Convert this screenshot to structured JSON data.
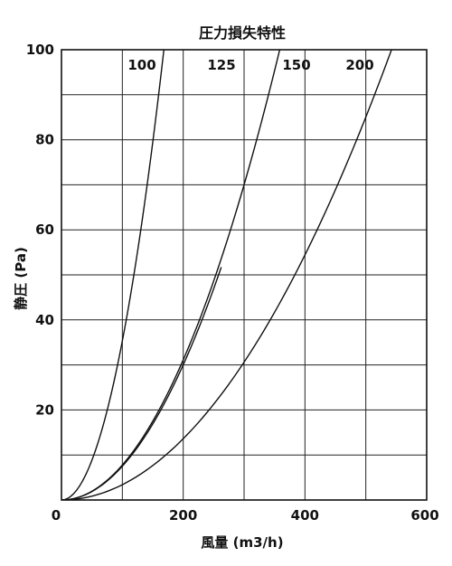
{
  "chart_data": {
    "type": "line",
    "title": "圧力損失特性",
    "xlabel": "風量 (m3/h)",
    "ylabel": "静圧 (Pa)",
    "xlim": [
      0,
      600
    ],
    "ylim": [
      0,
      100
    ],
    "xticks": [
      "0",
      "200",
      "400",
      "600"
    ],
    "yticks": [
      "0",
      "20",
      "40",
      "60",
      "80",
      "100"
    ],
    "grid": true,
    "series": [
      {
        "name": "100",
        "x": [
          0,
          25,
          50,
          75,
          100,
          125,
          150,
          175
        ],
        "y": [
          0,
          2.2,
          8.8,
          19.9,
          35.3,
          55.2,
          79.5,
          108.2
        ]
      },
      {
        "name": "125",
        "x": [
          0,
          50,
          100,
          150,
          200,
          250
        ],
        "y": [
          0,
          1.9,
          7.5,
          16.9,
          30,
          46.9
        ]
      },
      {
        "name": "150",
        "x": [
          0,
          50,
          100,
          150,
          200,
          250,
          300,
          350
        ],
        "y": [
          0,
          2,
          7.8,
          17.5,
          31.1,
          48.6,
          70,
          95.3
        ]
      },
      {
        "name": "200",
        "x": [
          0,
          100,
          200,
          300,
          400,
          500,
          550
        ],
        "y": [
          0,
          3.4,
          13.6,
          30.6,
          54.4,
          85,
          102.9
        ]
      }
    ]
  }
}
